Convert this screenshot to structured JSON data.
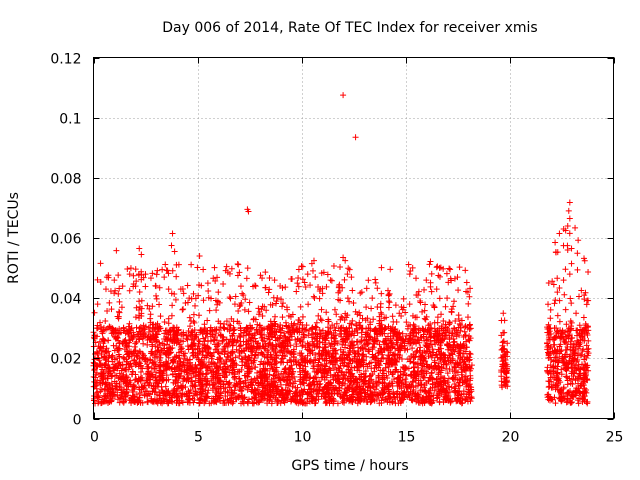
{
  "chart_data": {
    "type": "scatter",
    "title": "Day 006 of 2014, Rate Of TEC Index for receiver xmis",
    "xlabel": "GPS time / hours",
    "ylabel": "ROTI / TECUs",
    "xlim": [
      0,
      25
    ],
    "ylim": [
      0,
      0.12
    ],
    "xticks": [
      0,
      5,
      10,
      15,
      20,
      25
    ],
    "xtick_labels": [
      "0",
      "5",
      "10",
      "15",
      "20",
      "25"
    ],
    "yticks": [
      0,
      0.02,
      0.04,
      0.06,
      0.08,
      0.1,
      0.12
    ],
    "ytick_labels": [
      "0",
      "0.02",
      "0.04",
      "0.06",
      "0.08",
      "0.1",
      "0.12"
    ],
    "grid": true,
    "marker": "+",
    "color": "#ff0000",
    "dense_segments": [
      {
        "x_range": [
          0.0,
          18.2
        ],
        "typical_y": [
          0.005,
          0.03
        ],
        "max_y": 0.057
      },
      {
        "x_range": [
          19.6,
          19.9
        ],
        "typical_y": [
          0.01,
          0.025
        ],
        "max_y": 0.035
      },
      {
        "x_range": [
          21.8,
          23.8
        ],
        "typical_y": [
          0.005,
          0.03
        ],
        "max_y": 0.072
      }
    ],
    "series": [
      {
        "name": "ROTI",
        "points": [
          [
            12.0,
            0.1075
          ],
          [
            12.6,
            0.0935
          ],
          [
            7.4,
            0.0695
          ],
          [
            7.45,
            0.0688
          ],
          [
            22.9,
            0.0718
          ],
          [
            22.85,
            0.069
          ],
          [
            22.9,
            0.0665
          ],
          [
            22.8,
            0.064
          ],
          [
            22.7,
            0.0625
          ],
          [
            22.4,
            0.0615
          ],
          [
            22.8,
            0.056
          ],
          [
            3.8,
            0.0615
          ],
          [
            3.75,
            0.0575
          ],
          [
            3.9,
            0.0555
          ],
          [
            2.2,
            0.0565
          ],
          [
            2.3,
            0.0545
          ],
          [
            1.1,
            0.0558
          ],
          [
            5.1,
            0.054
          ],
          [
            6.4,
            0.0505
          ],
          [
            12.0,
            0.0535
          ],
          [
            12.1,
            0.0525
          ],
          [
            10.5,
            0.0515
          ],
          [
            10.6,
            0.0525
          ],
          [
            16.2,
            0.0522
          ],
          [
            16.7,
            0.0502
          ],
          [
            17.6,
            0.0503
          ],
          [
            22.9,
            0.048
          ],
          [
            0.2,
            0.038
          ],
          [
            0.6,
            0.043
          ],
          [
            1.0,
            0.046
          ],
          [
            1.4,
            0.044
          ],
          [
            1.8,
            0.05
          ],
          [
            2.5,
            0.048
          ],
          [
            3.0,
            0.044
          ],
          [
            3.4,
            0.047
          ],
          [
            4.2,
            0.043
          ],
          [
            4.6,
            0.04
          ],
          [
            5.5,
            0.045
          ],
          [
            6.0,
            0.042
          ],
          [
            6.8,
            0.038
          ],
          [
            7.2,
            0.041
          ],
          [
            7.8,
            0.044
          ],
          [
            8.3,
            0.036
          ],
          [
            8.8,
            0.039
          ],
          [
            9.3,
            0.037
          ],
          [
            9.8,
            0.045
          ],
          [
            10.3,
            0.048
          ],
          [
            10.9,
            0.043
          ],
          [
            11.4,
            0.046
          ],
          [
            11.8,
            0.044
          ],
          [
            12.4,
            0.047
          ],
          [
            12.9,
            0.042
          ],
          [
            13.4,
            0.04
          ],
          [
            13.8,
            0.037
          ],
          [
            14.2,
            0.039
          ],
          [
            14.7,
            0.035
          ],
          [
            15.2,
            0.038
          ],
          [
            15.6,
            0.041
          ],
          [
            16.0,
            0.046
          ],
          [
            16.5,
            0.043
          ],
          [
            17.0,
            0.04
          ],
          [
            17.5,
            0.047
          ],
          [
            18.0,
            0.042
          ],
          [
            19.7,
            0.035
          ],
          [
            22.3,
            0.042
          ],
          [
            22.6,
            0.046
          ],
          [
            23.2,
            0.035
          ],
          [
            23.5,
            0.027
          ]
        ]
      }
    ]
  }
}
